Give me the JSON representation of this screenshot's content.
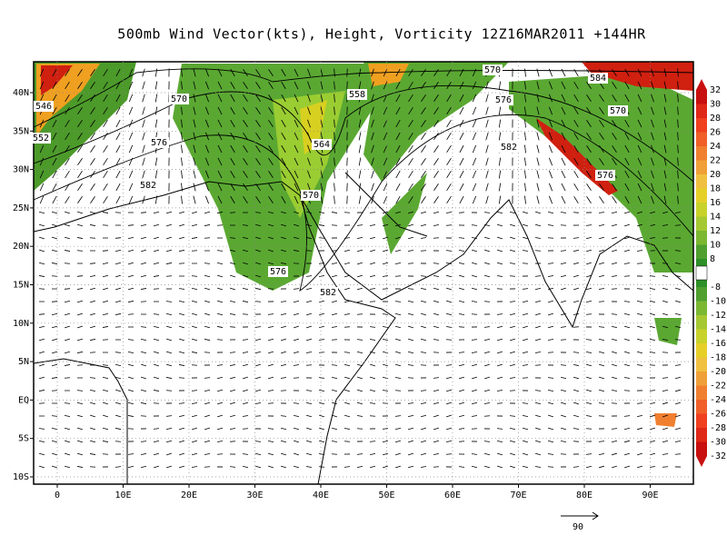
{
  "title": "500mb Wind Vector(kts), Height, Vorticity 12Z16MAR2011 +144HR",
  "lon_labels": [
    "0",
    "10E",
    "20E",
    "30E",
    "40E",
    "50E",
    "60E",
    "70E",
    "80E",
    "90E"
  ],
  "lat_labels": [
    "40N",
    "35N",
    "30N",
    "25N",
    "20N",
    "15N",
    "10N",
    "5N",
    "EQ",
    "5S",
    "10S"
  ],
  "colorbar_labels": [
    32,
    30,
    28,
    26,
    24,
    22,
    20,
    18,
    16,
    14,
    12,
    10,
    8,
    -8,
    -10,
    -12,
    -14,
    -16,
    -18,
    -20,
    -22,
    -24,
    -26,
    -28,
    -30,
    -32
  ],
  "contour_labels": [
    "546",
    "552",
    "570",
    "576",
    "582",
    "558",
    "564",
    "570",
    "576",
    "582",
    "570",
    "576",
    "582",
    "584",
    "570",
    "576"
  ],
  "reference_vector": "90"
}
